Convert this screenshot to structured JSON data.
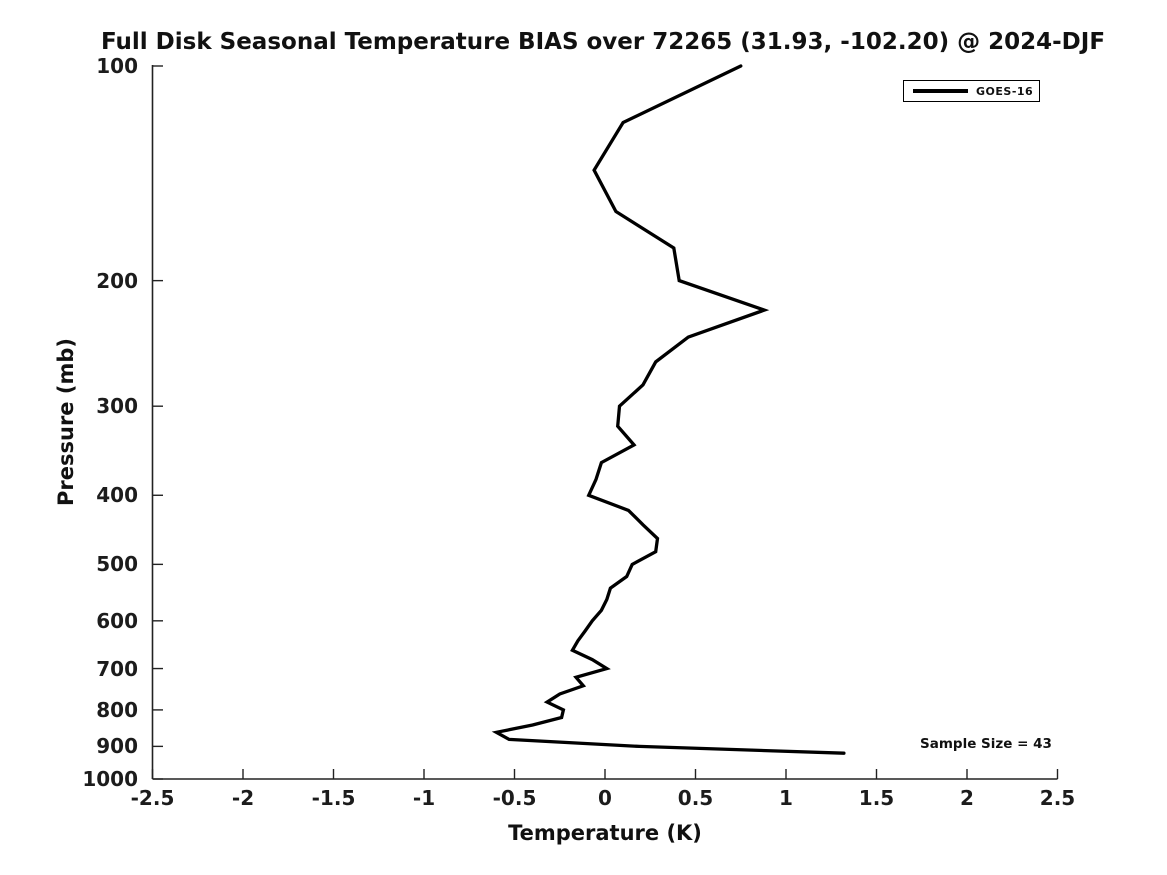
{
  "title": "Full Disk Seasonal Temperature BIAS over 72265 (31.93, -102.20) @ 2024-DJF",
  "annotation": "Sample Size = 43",
  "legend": {
    "position": "upper right",
    "entries": [
      {
        "label": "GOES-16",
        "color": "#000000"
      }
    ]
  },
  "chart_data": {
    "type": "line",
    "title": "Full Disk Seasonal Temperature BIAS over 72265 (31.93, -102.20) @ 2024-DJF",
    "xlabel": "Temperature (K)",
    "ylabel": "Pressure (mb)",
    "xlim": [
      -2.5,
      2.5
    ],
    "ylim": [
      100,
      1000
    ],
    "yscale": "log",
    "y_inverted": true,
    "grid": false,
    "legend_position": "upper right",
    "xticks": [
      -2.5,
      -2,
      -1.5,
      -1,
      -0.5,
      0,
      0.5,
      1,
      1.5,
      2,
      2.5
    ],
    "xtick_labels": [
      "-2.5",
      "-2",
      "-1.5",
      "-1",
      "-0.5",
      "0",
      "0.5",
      "1",
      "1.5",
      "2",
      "2.5"
    ],
    "yticks": [
      100,
      200,
      300,
      400,
      500,
      600,
      700,
      800,
      900,
      1000
    ],
    "ytick_labels": [
      "100",
      "200",
      "300",
      "400",
      "500",
      "600",
      "700",
      "800",
      "900",
      "1000"
    ],
    "series": [
      {
        "name": "GOES-16",
        "color": "#000000",
        "line_width": 3.3,
        "pressure_mb": [
          100,
          120,
          140,
          160,
          180,
          200,
          220,
          240,
          260,
          280,
          300,
          320,
          340,
          360,
          380,
          400,
          420,
          440,
          460,
          480,
          500,
          520,
          540,
          560,
          580,
          600,
          620,
          640,
          660,
          680,
          700,
          720,
          740,
          760,
          780,
          800,
          820,
          840,
          860,
          880,
          900,
          920
        ],
        "temperature_bias_k": [
          0.75,
          0.1,
          -0.06,
          0.06,
          0.38,
          0.41,
          0.88,
          0.46,
          0.28,
          0.21,
          0.08,
          0.07,
          0.16,
          -0.02,
          -0.05,
          -0.09,
          0.13,
          0.21,
          0.29,
          0.28,
          0.15,
          0.12,
          0.03,
          0.01,
          -0.02,
          -0.07,
          -0.11,
          -0.15,
          -0.18,
          -0.07,
          0.01,
          -0.16,
          -0.12,
          -0.25,
          -0.32,
          -0.23,
          -0.24,
          -0.4,
          -0.6,
          -0.53,
          0.19,
          1.32
        ]
      }
    ],
    "annotations": [
      {
        "text": "Sample Size = 43",
        "x": 2.08,
        "y": 900
      }
    ]
  }
}
